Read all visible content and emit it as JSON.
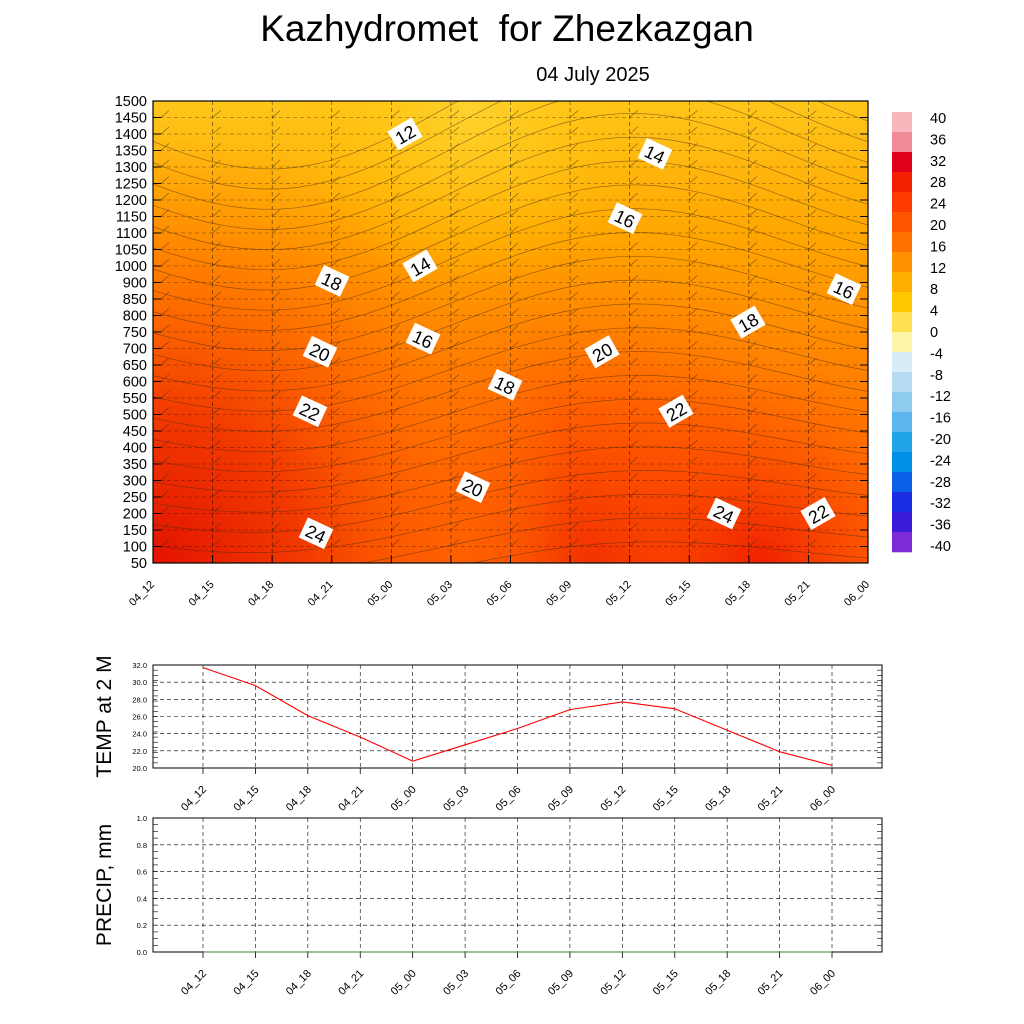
{
  "title": "Kazhydromet  for Zhezkazgan",
  "subtitle": "04 July 2025",
  "chart_data": [
    {
      "type": "heatmap",
      "name": "vertical temperature cross-section",
      "x_ticks": [
        "04_12",
        "04_15",
        "04_18",
        "04_21",
        "05_00",
        "05_03",
        "05_06",
        "05_09",
        "05_12",
        "05_15",
        "05_18",
        "05_21",
        "06_00"
      ],
      "y_ticks": [
        50,
        100,
        150,
        200,
        250,
        300,
        350,
        400,
        450,
        500,
        550,
        600,
        650,
        700,
        750,
        800,
        850,
        900,
        1000,
        1050,
        1100,
        1150,
        1200,
        1250,
        1300,
        1350,
        1400,
        1450,
        1500
      ],
      "colorbar": {
        "ticks": [
          40,
          36,
          32,
          28,
          24,
          20,
          16,
          12,
          8,
          4,
          0,
          -4,
          -8,
          -12,
          -16,
          -20,
          -24,
          -28,
          -32,
          -36,
          -40
        ],
        "colors": [
          "#f7b7bd",
          "#f08a96",
          "#e0001c",
          "#f22000",
          "#ff3a00",
          "#ff5500",
          "#ff7200",
          "#ff9000",
          "#ffae00",
          "#ffc800",
          "#ffe050",
          "#fff5a8",
          "#d6ecf7",
          "#b5dcf3",
          "#8fcbef",
          "#5bb6ec",
          "#21a3ea",
          "#0090e8",
          "#0a5fe6",
          "#1c2ee4",
          "#3a1bd9",
          "#7d2bd6"
        ]
      },
      "contour_labels": [
        {
          "value": "12",
          "x": 8.0,
          "y": 1400
        },
        {
          "value": "14",
          "x": 12.7,
          "y": 1340
        },
        {
          "value": "16",
          "x": 11.0,
          "y": 1145
        },
        {
          "value": "14",
          "x": 2.5,
          "y": 1000
        },
        {
          "value": "18",
          "x": -1.9,
          "y": 910
        },
        {
          "value": "16",
          "x": 22.0,
          "y": 880
        },
        {
          "value": "18",
          "x": 17.0,
          "y": 780
        },
        {
          "value": "16",
          "x": 2.3,
          "y": 730
        },
        {
          "value": "20",
          "x": -2.0,
          "y": 690
        },
        {
          "value": "20",
          "x": 10.0,
          "y": 690
        },
        {
          "value": "18",
          "x": 5.0,
          "y": 590
        },
        {
          "value": "22",
          "x": -2.3,
          "y": 510
        },
        {
          "value": "22",
          "x": 14.0,
          "y": 510
        },
        {
          "value": "20",
          "x": 3.9,
          "y": 280
        },
        {
          "value": "24",
          "x": 17.0,
          "y": 200
        },
        {
          "value": "22",
          "x": 20.0,
          "y": 200
        },
        {
          "value": "24",
          "x": -2.0,
          "y": 140
        }
      ],
      "colorbar_ticks_shown": [
        "40",
        "36",
        "32",
        "28",
        "24",
        "20",
        "16",
        "12",
        "8",
        "4",
        "0",
        "-4",
        "-8",
        "-12",
        "-16",
        "-20",
        "-24",
        "-28",
        "-32",
        "-36",
        "-40"
      ]
    },
    {
      "type": "line",
      "ylabel": "TEMP at 2 M",
      "categories": [
        "04_12",
        "04_15",
        "04_18",
        "04_21",
        "05_00",
        "05_03",
        "05_06",
        "05_09",
        "05_12",
        "05_15",
        "05_18",
        "05_21",
        "06_00"
      ],
      "series": [
        {
          "values": [
            31.7,
            29.6,
            26.1,
            23.6,
            20.8,
            22.7,
            24.6,
            26.8,
            27.7,
            26.9,
            24.4,
            21.9,
            20.3
          ]
        }
      ],
      "ylim": [
        20.0,
        32.0
      ],
      "y_ticks": [
        "20.0",
        "22.0",
        "24.0",
        "26.0",
        "28.0",
        "30.0",
        "32.0"
      ],
      "grid": true
    },
    {
      "type": "line",
      "ylabel": "PRECIP, mm",
      "categories": [
        "04_12",
        "04_15",
        "04_18",
        "04_21",
        "05_00",
        "05_03",
        "05_06",
        "05_09",
        "05_12",
        "05_15",
        "05_18",
        "05_21",
        "06_00"
      ],
      "series": [
        {
          "values": [
            0,
            0,
            0,
            0,
            0,
            0,
            0,
            0,
            0,
            0,
            0,
            0,
            0
          ]
        }
      ],
      "ylim": [
        0.0,
        1.0
      ],
      "y_ticks": [
        "0.0",
        "0.2",
        "0.4",
        "0.6",
        "0.8",
        "1.0"
      ],
      "grid": true
    }
  ]
}
